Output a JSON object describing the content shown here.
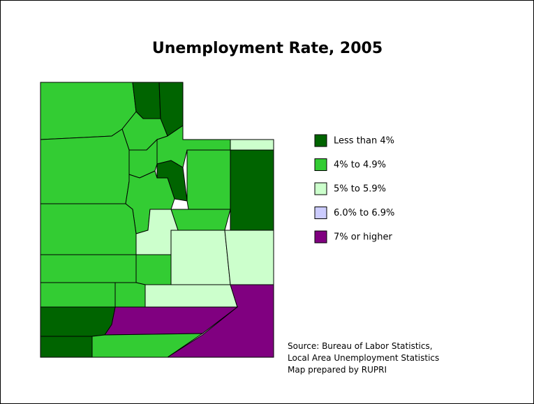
{
  "title": "Unemployment Rate, 2005",
  "legend": [
    {
      "label": "Less than 4%",
      "color": "#006400"
    },
    {
      "label": "4% to 4.9%",
      "color": "#33cc33"
    },
    {
      "label": "5% to 5.9%",
      "color": "#ccffcc"
    },
    {
      "label": "6.0% to 6.9%",
      "color": "#ccccff"
    },
    {
      "label": "7% or higher",
      "color": "#800080"
    }
  ],
  "source": [
    "Source: Bureau of Labor Statistics,",
    "Local Area Unemployment Statistics",
    "Map prepared by RUPRI"
  ]
}
